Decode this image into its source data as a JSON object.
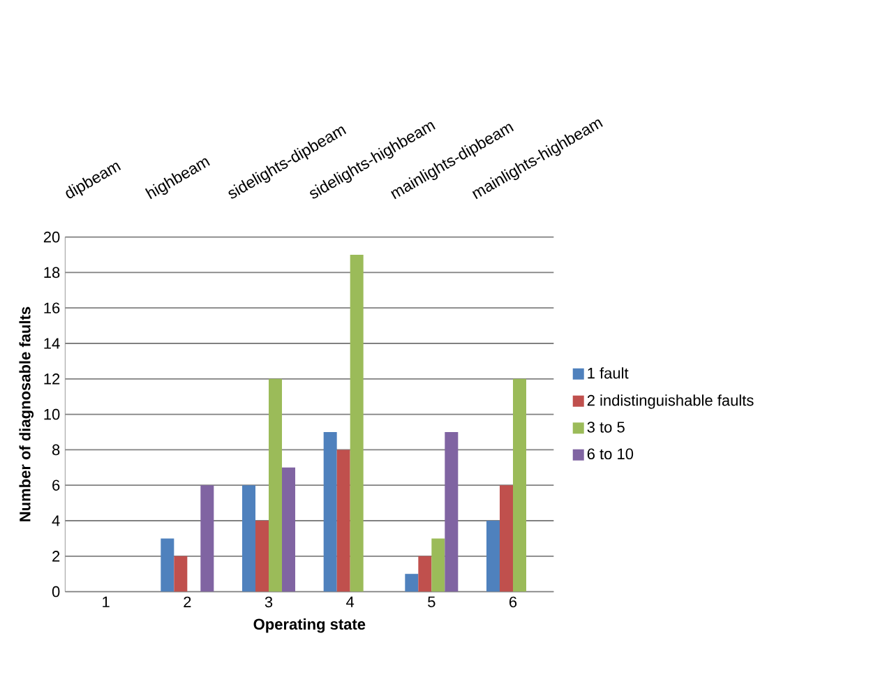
{
  "chart_data": {
    "type": "bar",
    "xlabel": "Operating state",
    "ylabel": "Number of diagnosable faults",
    "categories": [
      "1",
      "2",
      "3",
      "4",
      "5",
      "6"
    ],
    "series": [
      {
        "name": "1 fault",
        "color": "#4f81bd",
        "values": [
          0,
          3,
          6,
          9,
          1,
          4
        ]
      },
      {
        "name": "2 indistinguishable faults",
        "color": "#c0504d",
        "values": [
          0,
          2,
          4,
          8,
          2,
          6
        ]
      },
      {
        "name": "3 to 5",
        "color": "#9bbb59",
        "values": [
          0,
          0,
          12,
          19,
          3,
          12
        ]
      },
      {
        "name": "6 to 10",
        "color": "#8064a2",
        "values": [
          0,
          6,
          7,
          0,
          9,
          0
        ]
      }
    ],
    "ylim": [
      0,
      20
    ],
    "yticks": [
      0,
      2,
      4,
      6,
      8,
      10,
      12,
      14,
      16,
      18,
      20
    ],
    "grid": "y",
    "legend": "right",
    "annotations": [
      "dipbeam",
      "highbeam",
      "sidelights-dipbeam",
      "sidelights-highbeam",
      "mainlights-dipbeam",
      "mainlights-highbeam"
    ]
  }
}
